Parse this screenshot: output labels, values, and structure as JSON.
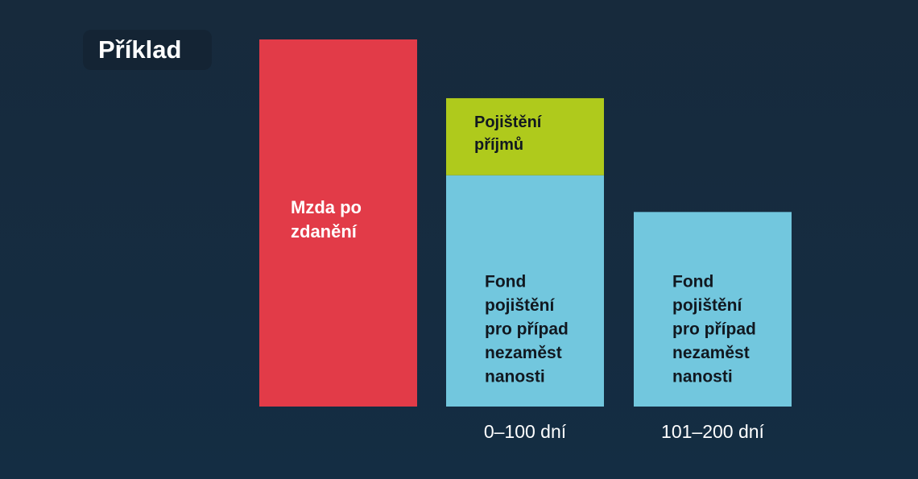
{
  "title": "Příklad",
  "colors": {
    "background": "#152a3d",
    "wage": "#e23b48",
    "insurance": "#afca1c",
    "fund": "#72c7de",
    "label_dark": "#111820",
    "label_light": "#ffffff"
  },
  "chart_data": {
    "type": "bar",
    "stacked": true,
    "categories": [
      "",
      "0–100 dní",
      "101–200 dní"
    ],
    "series": [
      {
        "name": "Mzda po zdanění",
        "label_lines": [
          "Mzda po",
          "zdanění"
        ],
        "color": "#e23b48",
        "values": [
          100,
          0,
          0
        ]
      },
      {
        "name": "Fond pojištění pro případ nezaměstnanosti",
        "label_lines": [
          "Fond",
          "pojištění",
          "pro případ",
          "nezaměst",
          "nanosti"
        ],
        "color": "#72c7de",
        "values": [
          0,
          63,
          53
        ]
      },
      {
        "name": "Pojištění příjmů",
        "label_lines": [
          "Pojištění",
          "příjmů"
        ],
        "color": "#afca1c",
        "values": [
          0,
          21,
          0
        ]
      }
    ],
    "ylim": [
      0,
      100
    ],
    "grid": false,
    "legend": "none"
  }
}
